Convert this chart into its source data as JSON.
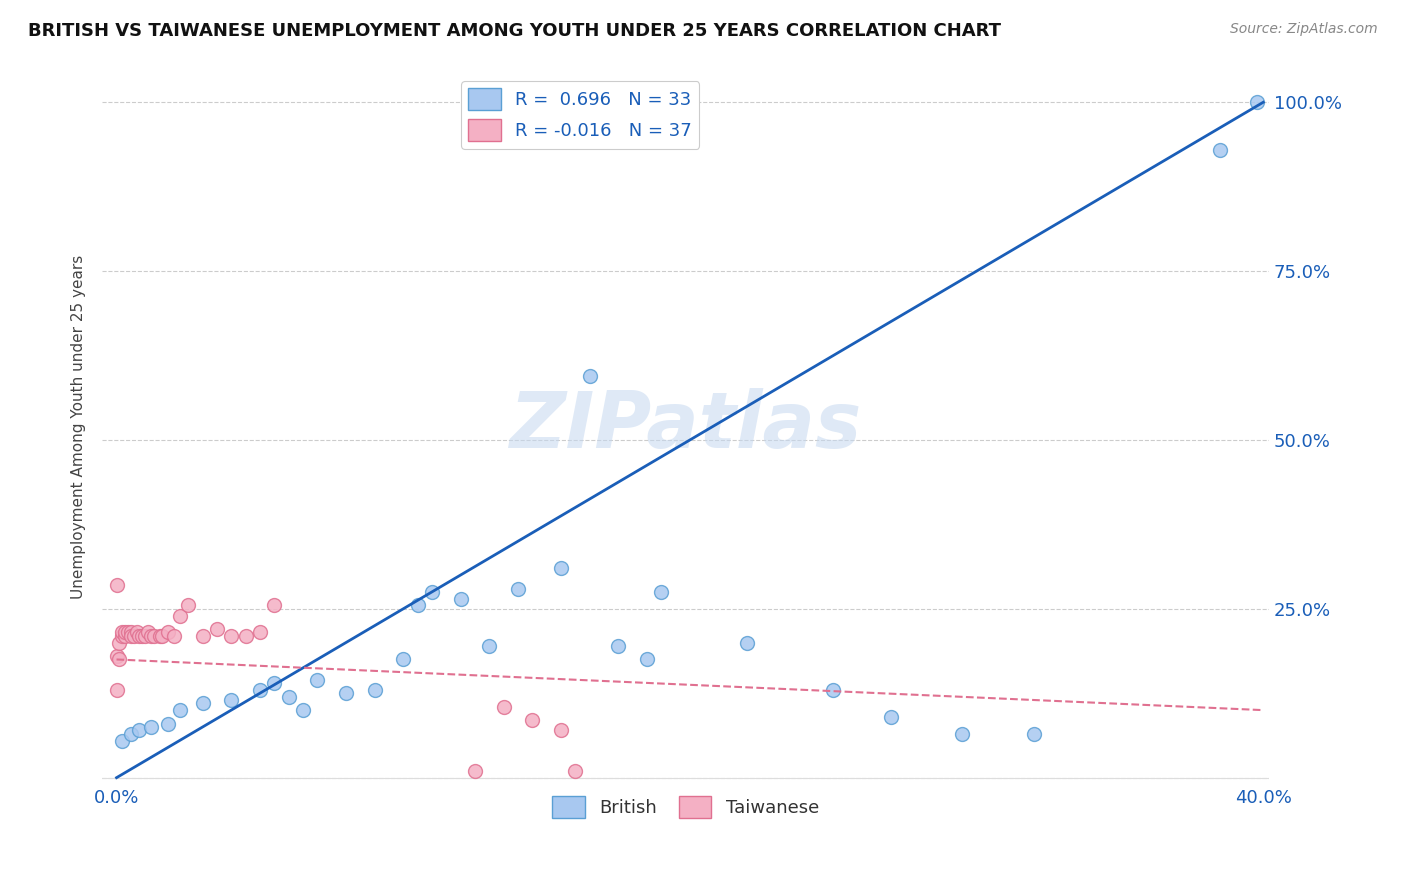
{
  "title": "BRITISH VS TAIWANESE UNEMPLOYMENT AMONG YOUTH UNDER 25 YEARS CORRELATION CHART",
  "source": "Source: ZipAtlas.com",
  "ylabel": "Unemployment Among Youth under 25 years",
  "watermark": "ZIPatlas",
  "british_R": 0.696,
  "british_N": 33,
  "taiwanese_R": -0.016,
  "taiwanese_N": 37,
  "xlim": [
    -0.005,
    0.402
  ],
  "ylim": [
    -0.01,
    1.05
  ],
  "british_color": "#a8c8f0",
  "british_edge_color": "#5a9fd4",
  "taiwanese_color": "#f4b0c4",
  "taiwanese_edge_color": "#e07090",
  "british_line_color": "#1a5eb8",
  "taiwanese_line_color": "#e07090",
  "british_x": [
    0.002,
    0.005,
    0.008,
    0.012,
    0.018,
    0.022,
    0.03,
    0.04,
    0.05,
    0.055,
    0.06,
    0.065,
    0.07,
    0.08,
    0.09,
    0.1,
    0.105,
    0.11,
    0.12,
    0.13,
    0.14,
    0.155,
    0.165,
    0.175,
    0.185,
    0.19,
    0.22,
    0.25,
    0.27,
    0.295,
    0.32,
    0.385,
    0.398
  ],
  "british_y": [
    0.055,
    0.065,
    0.07,
    0.075,
    0.08,
    0.1,
    0.11,
    0.115,
    0.13,
    0.14,
    0.12,
    0.1,
    0.145,
    0.125,
    0.13,
    0.175,
    0.255,
    0.275,
    0.265,
    0.195,
    0.28,
    0.31,
    0.595,
    0.195,
    0.175,
    0.275,
    0.2,
    0.13,
    0.09,
    0.065,
    0.065,
    0.93,
    1.0
  ],
  "taiwanese_x": [
    0.0,
    0.0,
    0.0,
    0.001,
    0.001,
    0.002,
    0.002,
    0.003,
    0.003,
    0.004,
    0.005,
    0.005,
    0.006,
    0.007,
    0.008,
    0.009,
    0.01,
    0.011,
    0.012,
    0.013,
    0.015,
    0.016,
    0.018,
    0.02,
    0.022,
    0.025,
    0.03,
    0.035,
    0.04,
    0.045,
    0.05,
    0.055,
    0.125,
    0.135,
    0.145,
    0.155,
    0.16
  ],
  "taiwanese_y": [
    0.285,
    0.18,
    0.13,
    0.175,
    0.2,
    0.21,
    0.215,
    0.21,
    0.215,
    0.215,
    0.215,
    0.21,
    0.21,
    0.215,
    0.21,
    0.21,
    0.21,
    0.215,
    0.21,
    0.21,
    0.21,
    0.21,
    0.215,
    0.21,
    0.24,
    0.255,
    0.21,
    0.22,
    0.21,
    0.21,
    0.215,
    0.255,
    0.01,
    0.105,
    0.085,
    0.07,
    0.01
  ],
  "marker_size": 100,
  "grid_color": "#cccccc",
  "tick_color": "#1a5eb8",
  "title_fontsize": 13,
  "source_fontsize": 10,
  "axis_fontsize": 13,
  "ylabel_fontsize": 11
}
